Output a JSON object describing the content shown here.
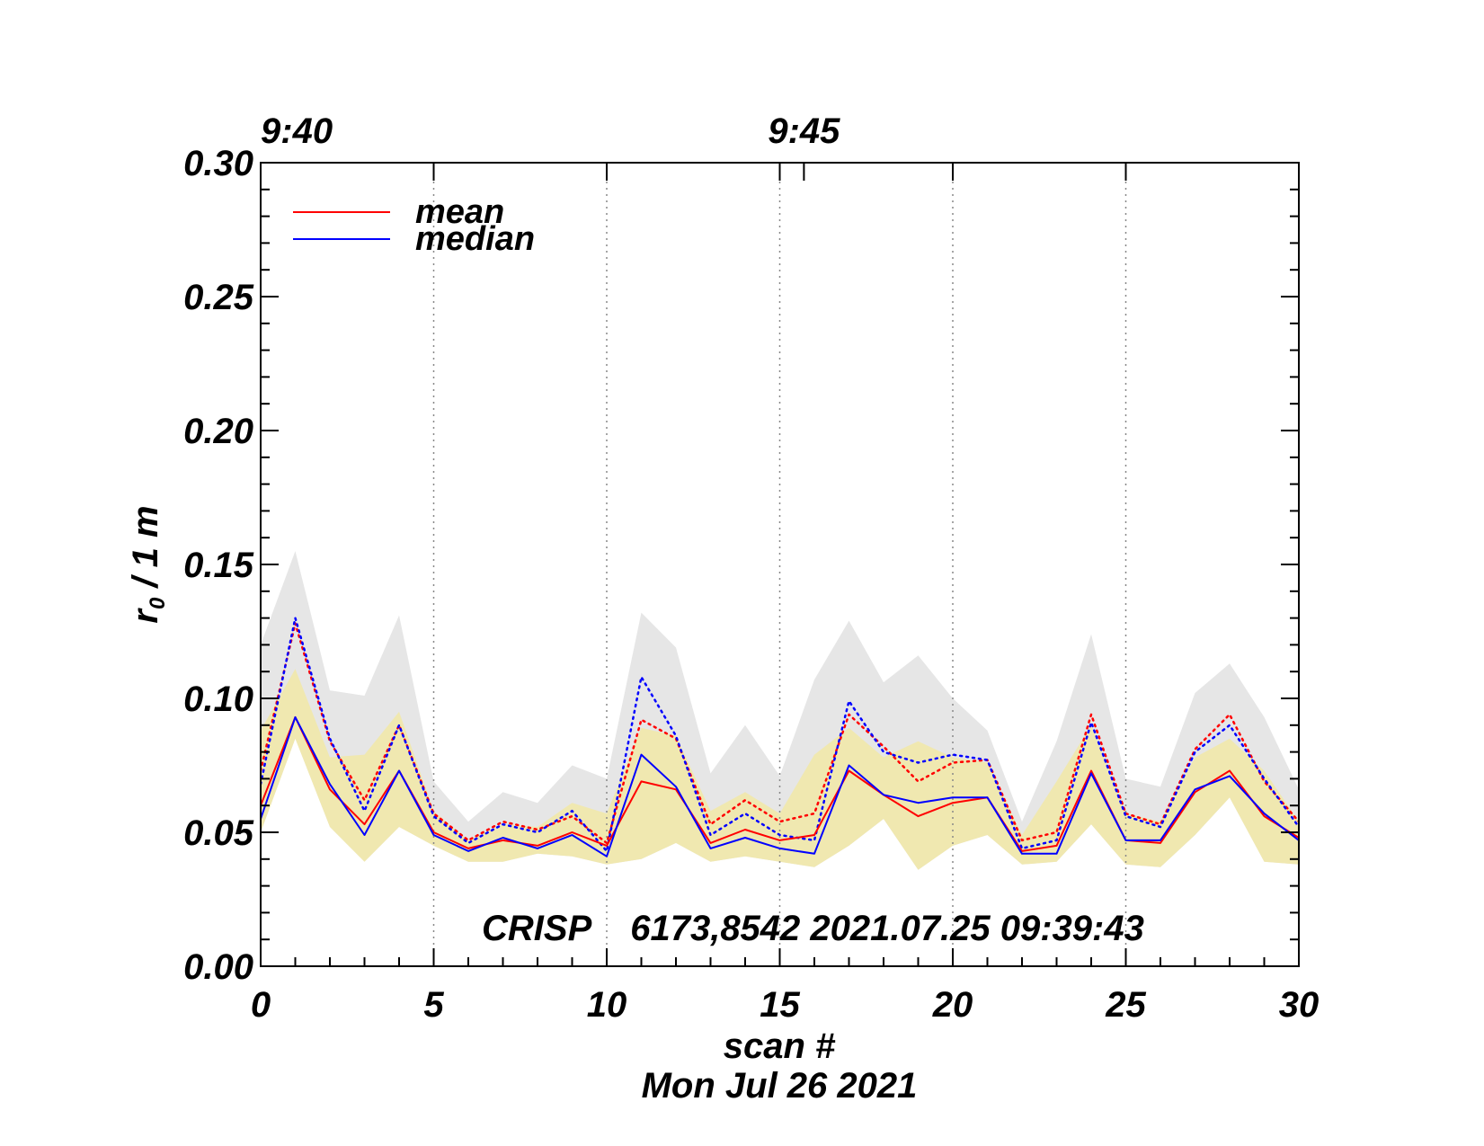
{
  "chart_data": {
    "type": "line",
    "title": "",
    "xlabel": "scan #",
    "date_label": "Mon Jul 26 2021",
    "ylabel_main": "r",
    "ylabel_sub": "0",
    "ylabel_rest": " / 1 m",
    "xlim": [
      0,
      30
    ],
    "ylim": [
      0.0,
      0.3
    ],
    "x_ticks": [
      0,
      5,
      10,
      15,
      20,
      25,
      30
    ],
    "x_tick_labels": [
      "0",
      "5",
      "10",
      "15",
      "20",
      "25",
      "30"
    ],
    "y_ticks": [
      0.0,
      0.05,
      0.1,
      0.15,
      0.2,
      0.25,
      0.3
    ],
    "y_tick_labels": [
      "0.00",
      "0.05",
      "0.10",
      "0.15",
      "0.20",
      "0.25",
      "0.30"
    ],
    "vertical_gridlines_x": [
      5,
      10,
      15,
      20,
      25
    ],
    "top_axis": [
      {
        "x": 0,
        "label": "9:40"
      },
      {
        "x": 15.7,
        "label": "9:45"
      }
    ],
    "annotation": "CRISP    6173,8542 2021.07.25 09:39:43",
    "legend": {
      "placement": "top-left",
      "entries": [
        {
          "label": "mean",
          "color": "#ff0000"
        },
        {
          "label": "median",
          "color": "#0000ff"
        }
      ]
    },
    "x": [
      0,
      1,
      2,
      3,
      4,
      5,
      6,
      7,
      8,
      9,
      10,
      11,
      12,
      13,
      14,
      15,
      16,
      17,
      18,
      19,
      20,
      21,
      22,
      23,
      24,
      25,
      26,
      27,
      28,
      29,
      30
    ],
    "bands": [
      {
        "name": "gray range",
        "color": "#e6e6e6",
        "upper": [
          0.12,
          0.155,
          0.103,
          0.101,
          0.131,
          0.069,
          0.054,
          0.065,
          0.061,
          0.075,
          0.07,
          0.132,
          0.119,
          0.072,
          0.09,
          0.071,
          0.107,
          0.129,
          0.106,
          0.116,
          0.1,
          0.088,
          0.054,
          0.084,
          0.124,
          0.07,
          0.067,
          0.102,
          0.113,
          0.093,
          0.066
        ],
        "lower": [
          0.05,
          0.085,
          0.052,
          0.039,
          0.052,
          0.045,
          0.039,
          0.039,
          0.042,
          0.041,
          0.038,
          0.04,
          0.046,
          0.039,
          0.041,
          0.039,
          0.037,
          0.045,
          0.055,
          0.036,
          0.045,
          0.049,
          0.038,
          0.039,
          0.053,
          0.038,
          0.037,
          0.049,
          0.063,
          0.039,
          0.038
        ]
      },
      {
        "name": "yellow range",
        "color": "#f0e8b0",
        "upper": [
          0.088,
          0.111,
          0.078,
          0.079,
          0.095,
          0.058,
          0.047,
          0.053,
          0.052,
          0.061,
          0.057,
          0.089,
          0.086,
          0.058,
          0.065,
          0.057,
          0.079,
          0.089,
          0.078,
          0.084,
          0.078,
          0.076,
          0.049,
          0.069,
          0.09,
          0.057,
          0.054,
          0.078,
          0.085,
          0.073,
          0.054
        ],
        "lower": [
          0.05,
          0.085,
          0.052,
          0.039,
          0.052,
          0.045,
          0.039,
          0.039,
          0.042,
          0.041,
          0.038,
          0.04,
          0.046,
          0.039,
          0.041,
          0.039,
          0.037,
          0.045,
          0.055,
          0.036,
          0.045,
          0.049,
          0.038,
          0.039,
          0.053,
          0.038,
          0.037,
          0.049,
          0.063,
          0.039,
          0.038
        ]
      }
    ],
    "series": [
      {
        "name": "mean",
        "color": "#ff0000",
        "style": "solid",
        "values": [
          0.06,
          0.093,
          0.066,
          0.053,
          0.073,
          0.05,
          0.044,
          0.047,
          0.045,
          0.05,
          0.045,
          0.069,
          0.066,
          0.046,
          0.051,
          0.047,
          0.049,
          0.073,
          0.064,
          0.056,
          0.061,
          0.063,
          0.043,
          0.045,
          0.073,
          0.047,
          0.046,
          0.065,
          0.073,
          0.056,
          0.048
        ]
      },
      {
        "name": "median",
        "color": "#0000ff",
        "style": "solid",
        "values": [
          0.055,
          0.093,
          0.068,
          0.049,
          0.073,
          0.049,
          0.043,
          0.048,
          0.044,
          0.049,
          0.041,
          0.079,
          0.067,
          0.044,
          0.048,
          0.044,
          0.042,
          0.075,
          0.064,
          0.061,
          0.063,
          0.063,
          0.042,
          0.042,
          0.072,
          0.047,
          0.047,
          0.066,
          0.071,
          0.057,
          0.047
        ]
      },
      {
        "name": "mean upper (dotted)",
        "color": "#ff0000",
        "style": "dotted",
        "values": [
          0.073,
          0.128,
          0.084,
          0.062,
          0.09,
          0.057,
          0.047,
          0.054,
          0.051,
          0.056,
          0.046,
          0.092,
          0.085,
          0.053,
          0.062,
          0.054,
          0.057,
          0.094,
          0.082,
          0.069,
          0.076,
          0.077,
          0.047,
          0.05,
          0.094,
          0.057,
          0.053,
          0.081,
          0.094,
          0.069,
          0.054
        ]
      },
      {
        "name": "median upper (dotted)",
        "color": "#0000ff",
        "style": "dotted",
        "values": [
          0.068,
          0.13,
          0.085,
          0.058,
          0.09,
          0.056,
          0.046,
          0.053,
          0.05,
          0.058,
          0.043,
          0.108,
          0.086,
          0.049,
          0.057,
          0.049,
          0.047,
          0.099,
          0.08,
          0.076,
          0.079,
          0.077,
          0.044,
          0.047,
          0.091,
          0.056,
          0.052,
          0.08,
          0.09,
          0.07,
          0.052
        ]
      }
    ]
  }
}
